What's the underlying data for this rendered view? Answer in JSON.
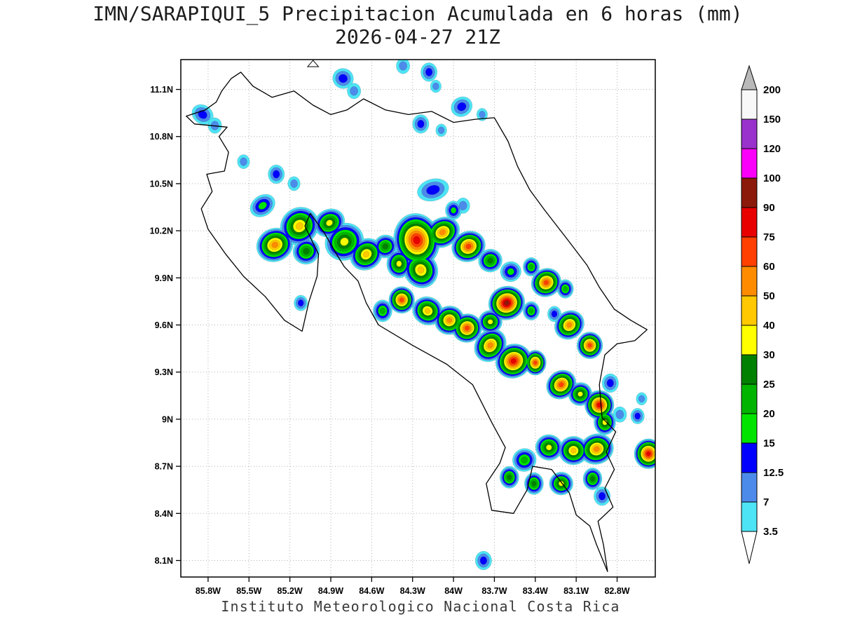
{
  "chart_data": {
    "type": "heatmap",
    "title": "IMN/SARAPIQUI_5 Precipitacion Acumulada en 6 horas (mm)",
    "valid_time": "2026-04-27 21Z",
    "attribution": "Instituto Meteorologico Nacional Costa Rica",
    "units": "mm",
    "grid": "dotted",
    "x_range_westdeg": [
      86.0,
      82.52
    ],
    "y_range_deg": [
      11.29,
      7.995
    ],
    "x_ticks": [
      85.8,
      85.5,
      85.2,
      84.9,
      84.6,
      84.3,
      84.0,
      83.7,
      83.4,
      83.1,
      82.8
    ],
    "x_tick_labels": [
      "85.8W",
      "85.5W",
      "85.2W",
      "84.9W",
      "84.6W",
      "84.3W",
      "84W",
      "83.7W",
      "83.4W",
      "83.1W",
      "82.8W"
    ],
    "y_ticks": [
      11.1,
      10.8,
      10.5,
      10.2,
      9.9,
      9.6,
      9.3,
      9.0,
      8.7,
      8.4,
      8.1
    ],
    "y_tick_labels": [
      "11.1N",
      "10.8N",
      "10.5N",
      "10.2N",
      "9.9N",
      "9.6N",
      "9.3N",
      "9N",
      "8.7N",
      "8.4N",
      "8.1N"
    ],
    "colorbar": {
      "levels": [
        3.5,
        7,
        12.5,
        15,
        20,
        25,
        30,
        40,
        50,
        60,
        75,
        90,
        100,
        120,
        150,
        200
      ],
      "labels": [
        "3.5",
        "7",
        "12.5",
        "15",
        "20",
        "25",
        "30",
        "40",
        "50",
        "60",
        "75",
        "90",
        "100",
        "120",
        "150",
        "200"
      ],
      "colors": [
        "#4DE4F5",
        "#4D8BEA",
        "#0000FF",
        "#00E400",
        "#00B400",
        "#008000",
        "#FFFF00",
        "#FFC800",
        "#FF8C00",
        "#FF4000",
        "#E80000",
        "#8C1A0A",
        "#FA00FA",
        "#9932CC",
        "#F8F8F8"
      ],
      "above_color": "#B9B9B9",
      "below_color": "#FFFFFF"
    },
    "coastline": [
      [
        85.7,
        11.09
      ],
      [
        85.63,
        11.17
      ],
      [
        85.56,
        11.21
      ],
      [
        85.47,
        11.12
      ],
      [
        85.33,
        11.05
      ],
      [
        85.17,
        11.09
      ],
      [
        85.03,
        11.0
      ],
      [
        84.9,
        10.94
      ],
      [
        84.78,
        10.97
      ],
      [
        84.66,
        11.04
      ],
      [
        84.5,
        10.97
      ],
      [
        84.33,
        10.94
      ],
      [
        84.16,
        10.96
      ],
      [
        84.0,
        10.89
      ],
      [
        83.84,
        10.91
      ],
      [
        83.7,
        10.92
      ],
      [
        83.6,
        10.77
      ],
      [
        83.53,
        10.61
      ],
      [
        83.44,
        10.46
      ],
      [
        83.33,
        10.33
      ],
      [
        83.16,
        10.14
      ],
      [
        83.02,
        9.98
      ],
      [
        82.93,
        9.84
      ],
      [
        82.82,
        9.7
      ],
      [
        82.7,
        9.63
      ],
      [
        82.58,
        9.57
      ],
      [
        82.67,
        9.5
      ],
      [
        82.8,
        9.48
      ],
      [
        82.89,
        9.41
      ],
      [
        82.93,
        9.22
      ],
      [
        82.91,
        9.01
      ],
      [
        82.81,
        8.92
      ],
      [
        82.88,
        8.79
      ],
      [
        82.82,
        8.68
      ],
      [
        82.89,
        8.56
      ],
      [
        82.83,
        8.44
      ],
      [
        82.94,
        8.35
      ],
      [
        82.9,
        8.2
      ],
      [
        82.87,
        8.03
      ],
      [
        82.95,
        8.2
      ],
      [
        83.0,
        8.32
      ],
      [
        83.1,
        8.39
      ],
      [
        83.15,
        8.53
      ],
      [
        83.28,
        8.68
      ],
      [
        83.42,
        8.7
      ],
      [
        83.46,
        8.55
      ],
      [
        83.56,
        8.4
      ],
      [
        83.72,
        8.42
      ],
      [
        83.76,
        8.59
      ],
      [
        83.66,
        8.72
      ],
      [
        83.62,
        8.82
      ],
      [
        83.72,
        8.98
      ],
      [
        83.86,
        9.22
      ],
      [
        84.05,
        9.35
      ],
      [
        84.3,
        9.47
      ],
      [
        84.55,
        9.6
      ],
      [
        84.64,
        9.74
      ],
      [
        84.7,
        9.88
      ],
      [
        84.8,
        9.97
      ],
      [
        84.85,
        10.04
      ],
      [
        84.95,
        10.19
      ],
      [
        85.05,
        10.31
      ],
      [
        85.09,
        10.23
      ],
      [
        84.99,
        10.05
      ],
      [
        85.0,
        9.91
      ],
      [
        85.06,
        9.75
      ],
      [
        85.11,
        9.56
      ],
      [
        85.24,
        9.63
      ],
      [
        85.38,
        9.78
      ],
      [
        85.54,
        9.91
      ],
      [
        85.67,
        10.05
      ],
      [
        85.8,
        10.21
      ],
      [
        85.85,
        10.34
      ],
      [
        85.77,
        10.45
      ],
      [
        85.81,
        10.56
      ],
      [
        85.68,
        10.58
      ],
      [
        85.65,
        10.7
      ],
      [
        85.72,
        10.8
      ],
      [
        85.66,
        10.86
      ],
      [
        85.9,
        10.88
      ],
      [
        85.96,
        10.93
      ],
      [
        85.82,
        10.97
      ],
      [
        85.74,
        11.02
      ]
    ],
    "islet_triangle": [
      [
        85.03,
        11.285
      ],
      [
        84.99,
        11.245
      ],
      [
        85.07,
        11.245
      ]
    ],
    "cells_format": [
      "lon_west_deg",
      "lat_deg",
      "max_mm",
      "halo_radius_deg",
      "aspect",
      "rotation_deg"
    ],
    "cells": [
      [
        84.81,
        11.17,
        12.5,
        0.07,
        1.2,
        20
      ],
      [
        84.73,
        11.09,
        7,
        0.05,
        1,
        0
      ],
      [
        84.37,
        11.25,
        7,
        0.05,
        1,
        0
      ],
      [
        84.18,
        11.21,
        12.5,
        0.06,
        1,
        0
      ],
      [
        84.13,
        11.12,
        7,
        0.04,
        1,
        0
      ],
      [
        83.94,
        10.99,
        12.5,
        0.07,
        1.3,
        -30
      ],
      [
        83.79,
        10.94,
        7,
        0.04,
        1,
        0
      ],
      [
        84.24,
        10.88,
        12.5,
        0.06,
        1,
        0
      ],
      [
        84.09,
        10.84,
        7,
        0.04,
        1,
        0
      ],
      [
        85.84,
        10.94,
        12.5,
        0.07,
        1.4,
        35
      ],
      [
        85.75,
        10.87,
        7,
        0.05,
        1,
        0
      ],
      [
        85.54,
        10.64,
        7,
        0.045,
        1,
        0
      ],
      [
        85.3,
        10.56,
        12.5,
        0.06,
        1,
        0
      ],
      [
        85.17,
        10.5,
        7,
        0.045,
        1,
        0
      ],
      [
        84.15,
        10.46,
        12.5,
        0.09,
        1.7,
        -15
      ],
      [
        83.93,
        10.36,
        7,
        0.05,
        1,
        0
      ],
      [
        85.4,
        10.36,
        15,
        0.08,
        1.5,
        -35
      ],
      [
        84.0,
        10.33,
        15,
        0.06,
        1,
        0
      ],
      [
        85.13,
        10.23,
        40,
        0.13,
        1.25,
        -40
      ],
      [
        85.31,
        10.11,
        50,
        0.12,
        1.3,
        -25
      ],
      [
        85.08,
        10.07,
        25,
        0.09,
        1.2,
        -30
      ],
      [
        84.91,
        10.25,
        30,
        0.1,
        1.35,
        -30
      ],
      [
        84.8,
        10.13,
        30,
        0.13,
        1.25,
        -35
      ],
      [
        84.64,
        10.05,
        40,
        0.11,
        1.3,
        -40
      ],
      [
        84.5,
        10.1,
        25,
        0.08,
        1.2,
        -30
      ],
      [
        84.27,
        10.14,
        75,
        0.17,
        1.35,
        80
      ],
      [
        84.24,
        9.95,
        40,
        0.12,
        1.25,
        60
      ],
      [
        84.4,
        9.99,
        30,
        0.09,
        1,
        0
      ],
      [
        84.08,
        10.19,
        50,
        0.11,
        1.4,
        -30
      ],
      [
        83.89,
        10.1,
        60,
        0.11,
        1.3,
        -25
      ],
      [
        83.73,
        10.01,
        25,
        0.08,
        1.2,
        -20
      ],
      [
        83.58,
        9.94,
        15,
        0.07,
        1.2,
        -20
      ],
      [
        83.43,
        9.97,
        20,
        0.06,
        1,
        0
      ],
      [
        83.32,
        9.87,
        60,
        0.1,
        1.25,
        -30
      ],
      [
        83.18,
        9.83,
        20,
        0.06,
        1,
        0
      ],
      [
        84.38,
        9.76,
        60,
        0.09,
        1.1,
        0
      ],
      [
        84.52,
        9.69,
        20,
        0.07,
        1,
        0
      ],
      [
        84.19,
        9.69,
        40,
        0.1,
        1.25,
        25
      ],
      [
        84.03,
        9.63,
        50,
        0.1,
        1.2,
        -20
      ],
      [
        83.9,
        9.58,
        60,
        0.1,
        1.2,
        -20
      ],
      [
        83.73,
        9.62,
        30,
        0.08,
        1.2,
        0
      ],
      [
        83.61,
        9.74,
        90,
        0.12,
        1.25,
        -20
      ],
      [
        83.43,
        9.69,
        20,
        0.06,
        1,
        0
      ],
      [
        83.26,
        9.67,
        12.5,
        0.05,
        1,
        0
      ],
      [
        83.15,
        9.6,
        50,
        0.1,
        1.3,
        -40
      ],
      [
        83.0,
        9.47,
        60,
        0.09,
        1.1,
        0
      ],
      [
        83.73,
        9.47,
        50,
        0.11,
        1.35,
        -50
      ],
      [
        83.56,
        9.37,
        75,
        0.12,
        1.25,
        -30
      ],
      [
        83.4,
        9.36,
        60,
        0.08,
        1,
        0
      ],
      [
        83.21,
        9.22,
        60,
        0.1,
        1.3,
        -40
      ],
      [
        83.07,
        9.16,
        30,
        0.08,
        1.2,
        -30
      ],
      [
        82.93,
        9.09,
        75,
        0.1,
        1.15,
        -30
      ],
      [
        82.89,
        8.98,
        30,
        0.08,
        1,
        0
      ],
      [
        82.78,
        9.03,
        7,
        0.05,
        1,
        0
      ],
      [
        82.65,
        9.02,
        12.5,
        0.05,
        1,
        0
      ],
      [
        82.85,
        9.23,
        12.5,
        0.06,
        1,
        0
      ],
      [
        82.62,
        9.13,
        7,
        0.04,
        1,
        0
      ],
      [
        82.57,
        8.78,
        75,
        0.1,
        1.1,
        0
      ],
      [
        82.95,
        8.81,
        50,
        0.11,
        1.3,
        -20
      ],
      [
        83.12,
        8.8,
        40,
        0.1,
        1.2,
        0
      ],
      [
        83.3,
        8.82,
        30,
        0.09,
        1.2,
        10
      ],
      [
        83.48,
        8.74,
        20,
        0.08,
        1.2,
        -20
      ],
      [
        83.59,
        8.63,
        25,
        0.07,
        1,
        0
      ],
      [
        83.41,
        8.59,
        25,
        0.07,
        1,
        0
      ],
      [
        83.21,
        8.59,
        30,
        0.08,
        1.2,
        0
      ],
      [
        82.98,
        8.62,
        25,
        0.07,
        1,
        0
      ],
      [
        82.91,
        8.51,
        12.5,
        0.06,
        1,
        0
      ],
      [
        83.78,
        8.1,
        12.5,
        0.06,
        1,
        0
      ],
      [
        85.12,
        9.74,
        12.5,
        0.05,
        1,
        0
      ]
    ]
  }
}
